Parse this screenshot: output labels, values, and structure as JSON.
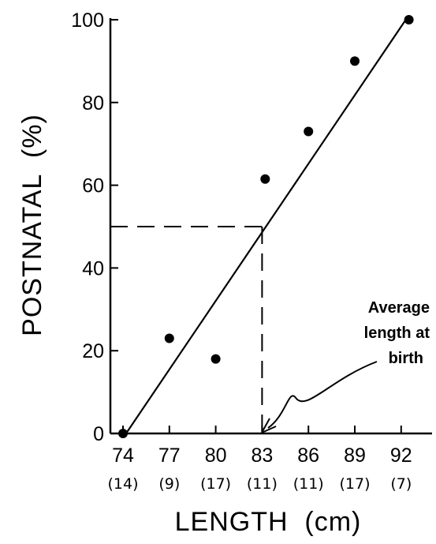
{
  "chart_data": {
    "type": "scatter",
    "title": "",
    "xlabel": "LENGTH  (cm)",
    "ylabel": "POSTNATAL  (%)",
    "xlim": [
      73,
      93
    ],
    "ylim": [
      0,
      100
    ],
    "x_ticks": [
      "74",
      "77",
      "80",
      "83",
      "86",
      "89",
      "92"
    ],
    "x_tick_values": [
      74,
      77,
      80,
      83,
      86,
      89,
      92
    ],
    "x_tick_counts": [
      "(14)",
      "(9)",
      "(17)",
      "(11)",
      "(11)",
      "(17)",
      "(7)"
    ],
    "y_ticks": [
      "0",
      "20",
      "40",
      "60",
      "80",
      "100"
    ],
    "y_tick_values": [
      0,
      20,
      40,
      60,
      80,
      100
    ],
    "points": [
      {
        "x": 74,
        "y": 0
      },
      {
        "x": 77,
        "y": 23
      },
      {
        "x": 80,
        "y": 18
      },
      {
        "x": 83.2,
        "y": 61.5
      },
      {
        "x": 86,
        "y": 73
      },
      {
        "x": 89,
        "y": 90
      },
      {
        "x": 92.5,
        "y": 100
      }
    ],
    "fit_line": {
      "x": [
        74.2,
        92.3
      ],
      "y": [
        0,
        100
      ]
    },
    "reference_lines": {
      "x": 83,
      "y": 50
    },
    "annotation": {
      "text": [
        "Average",
        "length at",
        "birth"
      ]
    },
    "grid": false
  }
}
